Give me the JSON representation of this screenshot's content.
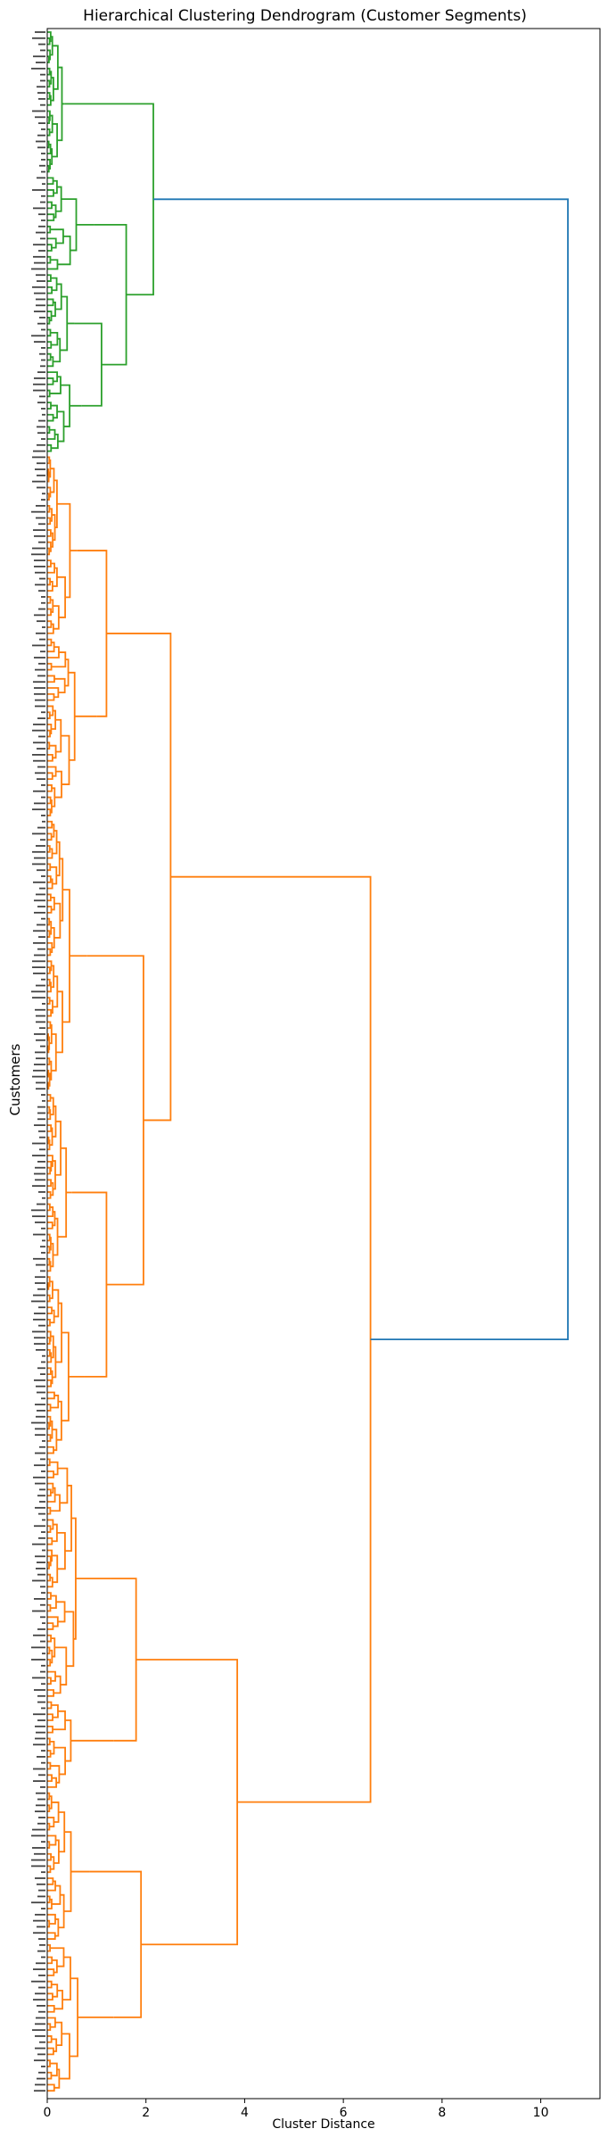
{
  "chart_data": {
    "type": "dendrogram",
    "title": "Hierarchical Clustering Dendrogram (Customer Segments)",
    "xlabel": "Cluster Distance",
    "ylabel": "Customers",
    "xlim": [
      0,
      11.2
    ],
    "xticks": [
      0,
      2,
      4,
      6,
      8,
      10
    ],
    "orientation": "horizontal-right",
    "grid": false,
    "leaf_count": 340,
    "colors": {
      "cluster_1": "#2ca02c",
      "cluster_2": "#ff7f0e",
      "root": "#1f77b4"
    },
    "major_merges": [
      {
        "cluster": "cluster_1",
        "distance": 2.15
      },
      {
        "cluster": "cluster_1",
        "distance": 1.6
      },
      {
        "cluster": "cluster_1",
        "distance": 0.95
      },
      {
        "cluster": "cluster_1",
        "distance": 1.1
      },
      {
        "cluster": "cluster_2",
        "distance": 6.55
      },
      {
        "cluster": "cluster_2",
        "distance": 2.5
      },
      {
        "cluster": "cluster_2",
        "distance": 1.95
      },
      {
        "cluster": "cluster_2",
        "distance": 1.2
      },
      {
        "cluster": "cluster_2",
        "distance": 3.85
      },
      {
        "cluster": "cluster_2",
        "distance": 1.8
      },
      {
        "cluster": "cluster_2",
        "distance": 1.9
      },
      {
        "cluster": "cluster_2",
        "distance": 1.35
      },
      {
        "cluster": "root",
        "distance": 10.55
      }
    ]
  }
}
